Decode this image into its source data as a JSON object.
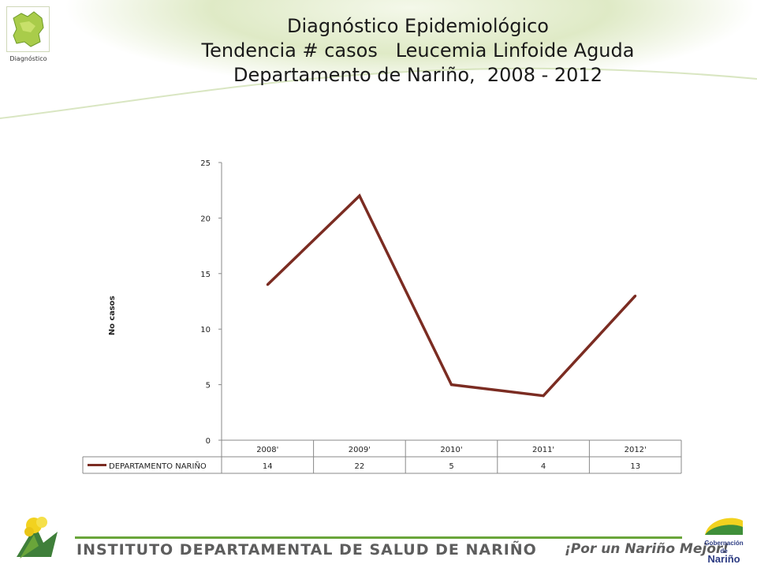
{
  "header": {
    "title_lines": [
      "Diagnóstico Epidemiológico",
      "Tendencia # casos   Leucemia Linfoide Aguda",
      "Departamento de Nariño,  2008 - 2012"
    ],
    "logo_caption": "Diagnóstico"
  },
  "footer": {
    "institute": "INSTITUTO DEPARTAMENTAL DE SALUD DE NARIÑO",
    "slogan": "¡Por un Nariño Mejor!",
    "gov_logo_small": "Gobernación de",
    "gov_logo_big": "Nariño"
  },
  "colors": {
    "series_line": "#7b2c22",
    "footer_line": "#6aa53a",
    "header_green": "#dfeac6"
  },
  "chart_data": {
    "type": "line",
    "categories": [
      "2008'",
      "2009'",
      "2010'",
      "2011'",
      "2012'"
    ],
    "series": [
      {
        "name": "DEPARTAMENTO NARIÑO",
        "values": [
          14,
          22,
          5,
          4,
          13
        ]
      }
    ],
    "ylabel": "No casos",
    "ylim": [
      0,
      25
    ],
    "yticks": [
      0,
      5,
      10,
      15,
      20,
      25
    ],
    "grid": false,
    "legend": "data-table"
  }
}
